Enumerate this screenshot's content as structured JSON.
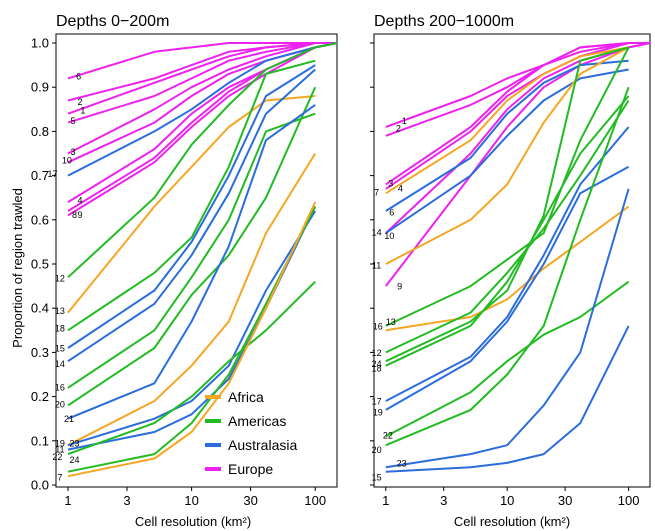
{
  "chart_data": {
    "type": "line",
    "colors": {
      "Africa": "#f5a623",
      "Americas": "#22bb22",
      "Australasia": "#2a6ddb",
      "Europe": "#ee22ee"
    },
    "shared": {
      "ylabel": "Proportion of region trawled",
      "xlabel": "Cell resolution (km²)",
      "x_scale": "log",
      "xlim": [
        0.8,
        150
      ],
      "ylim": [
        0,
        1.0
      ],
      "x_ticks": [
        1,
        3,
        10,
        30,
        100
      ],
      "x_tick_labels": [
        "1",
        "3",
        "10",
        "30",
        "100"
      ],
      "y_ticks": [
        0,
        0.1,
        0.2,
        0.3,
        0.4,
        0.5,
        0.6,
        0.7,
        0.8,
        0.9,
        1.0
      ],
      "y_tick_labels": [
        "0.0",
        "0.1",
        "0.2",
        "0.3",
        "0.4",
        "0.5",
        "0.6",
        "0.7",
        "0.8",
        "0.9",
        "1.0"
      ],
      "x_values": [
        1,
        5,
        10,
        20,
        40,
        100,
        150
      ]
    },
    "legend": {
      "placement": "bottom-right of left panel",
      "entries": [
        "Africa",
        "Americas",
        "Australasia",
        "Europe"
      ]
    },
    "panels": [
      {
        "title": "Depths 0−200m",
        "show_y_tick_labels": true,
        "series": [
          {
            "label": "6",
            "region": "Europe",
            "values": [
              0.92,
              0.98,
              0.99,
              1.0,
              1.0,
              1.0,
              1.0
            ]
          },
          {
            "label": "2",
            "region": "Europe",
            "values": [
              0.87,
              0.92,
              0.95,
              0.98,
              0.99,
              1.0,
              1.0
            ]
          },
          {
            "label": "1",
            "region": "Europe",
            "values": [
              0.84,
              0.91,
              0.94,
              0.97,
              0.99,
              1.0,
              1.0
            ]
          },
          {
            "label": "5",
            "region": "Europe",
            "values": [
              0.82,
              0.88,
              0.92,
              0.96,
              0.98,
              1.0,
              1.0
            ]
          },
          {
            "label": "3",
            "region": "Europe",
            "values": [
              0.75,
              0.85,
              0.9,
              0.94,
              0.97,
              1.0,
              1.0
            ]
          },
          {
            "label": "10",
            "region": "Europe",
            "values": [
              0.73,
              0.82,
              0.88,
              0.93,
              0.96,
              0.99,
              1.0
            ]
          },
          {
            "label": "4",
            "region": "Europe",
            "values": [
              0.64,
              0.76,
              0.84,
              0.9,
              0.94,
              0.99,
              1.0
            ]
          },
          {
            "label": "8",
            "region": "Europe",
            "values": [
              0.61,
              0.73,
              0.81,
              0.88,
              0.93,
              0.99,
              1.0
            ]
          },
          {
            "label": "9",
            "region": "Europe",
            "values": [
              0.62,
              0.74,
              0.82,
              0.89,
              0.94,
              0.99,
              1.0
            ]
          },
          {
            "label": "17",
            "region": "Australasia",
            "values": [
              0.7,
              0.8,
              0.85,
              0.91,
              0.96,
              0.99,
              1.0
            ]
          },
          {
            "label": "12",
            "region": "Americas",
            "values": [
              0.47,
              0.65,
              0.77,
              0.86,
              0.94,
              0.99,
              1.0
            ]
          },
          {
            "label": "13",
            "region": "Africa",
            "values": [
              0.39,
              0.63,
              0.72,
              0.81,
              0.87,
              0.88
            ]
          },
          {
            "label": "18",
            "region": "Americas",
            "values": [
              0.35,
              0.48,
              0.56,
              0.72,
              0.93,
              0.96
            ]
          },
          {
            "label": "15",
            "region": "Australasia",
            "values": [
              0.31,
              0.44,
              0.55,
              0.7,
              0.88,
              0.95
            ]
          },
          {
            "label": "14",
            "region": "Australasia",
            "values": [
              0.28,
              0.41,
              0.52,
              0.66,
              0.84,
              0.94
            ]
          },
          {
            "label": "16",
            "region": "Americas",
            "values": [
              0.22,
              0.35,
              0.47,
              0.6,
              0.8,
              0.84
            ]
          },
          {
            "label": "20",
            "region": "Americas",
            "values": [
              0.18,
              0.31,
              0.43,
              0.52,
              0.65,
              0.9
            ]
          },
          {
            "label": "21",
            "region": "Australasia",
            "values": [
              0.15,
              0.23,
              0.37,
              0.54,
              0.78,
              0.86
            ]
          },
          {
            "label": "19",
            "region": "Africa",
            "values": [
              0.09,
              0.19,
              0.27,
              0.37,
              0.57,
              0.75
            ]
          },
          {
            "label": "23",
            "region": "Australasia",
            "values": [
              0.09,
              0.15,
              0.19,
              0.27,
              0.44,
              0.62
            ]
          },
          {
            "label": "11",
            "region": "Australasia",
            "values": [
              0.08,
              0.12,
              0.16,
              0.24,
              0.4,
              0.63
            ]
          },
          {
            "label": "22",
            "region": "Americas",
            "values": [
              0.07,
              0.14,
              0.2,
              0.28,
              0.35,
              0.46
            ]
          },
          {
            "label": "24",
            "region": "Americas",
            "values": [
              0.03,
              0.07,
              0.14,
              0.25,
              0.41,
              0.63
            ]
          },
          {
            "label": "7",
            "region": "Africa",
            "values": [
              0.02,
              0.06,
              0.12,
              0.23,
              0.4,
              0.64
            ]
          }
        ],
        "label_positions": {
          "6": [
            1.22,
            0.925
          ],
          "2": [
            1.25,
            0.868
          ],
          "1": [
            1.32,
            0.848
          ],
          "5": [
            1.1,
            0.825
          ],
          "3": [
            1.1,
            0.755
          ],
          "10": [
            0.98,
            0.735
          ],
          "17": [
            0.75,
            0.705
          ],
          "4": [
            1.25,
            0.645
          ],
          "8": [
            1.13,
            0.612
          ],
          "9": [
            1.25,
            0.612
          ],
          "12": [
            0.86,
            0.468
          ],
          "13": [
            0.86,
            0.395
          ],
          "18": [
            0.86,
            0.355
          ],
          "15": [
            0.86,
            0.31
          ],
          "14": [
            0.86,
            0.275
          ],
          "16": [
            0.86,
            0.222
          ],
          "20": [
            0.86,
            0.183
          ],
          "21": [
            1.02,
            0.15
          ],
          "19": [
            0.86,
            0.095
          ],
          "23": [
            1.13,
            0.095
          ],
          "11": [
            0.86,
            0.082
          ],
          "22": [
            0.82,
            0.065
          ],
          "24": [
            1.13,
            0.058
          ],
          "7": [
            0.86,
            0.018
          ]
        }
      },
      {
        "title": "Depths 200−1000m",
        "show_y_tick_labels": false,
        "series": [
          {
            "label": "1",
            "region": "Europe",
            "values": [
              0.81,
              0.88,
              0.92,
              0.95,
              0.99,
              1.0,
              1.0
            ]
          },
          {
            "label": "2",
            "region": "Europe",
            "values": [
              0.79,
              0.86,
              0.9,
              0.95,
              0.99,
              1.0,
              1.0
            ]
          },
          {
            "label": "3",
            "region": "Europe",
            "values": [
              0.68,
              0.81,
              0.89,
              0.95,
              0.98,
              1.0,
              1.0
            ]
          },
          {
            "label": "4",
            "region": "Europe",
            "values": [
              0.67,
              0.8,
              0.88,
              0.93,
              0.97,
              1.0,
              1.0
            ]
          },
          {
            "label": "10",
            "region": "Europe",
            "values": [
              0.57,
              0.75,
              0.85,
              0.92,
              0.96,
              0.99,
              1.0
            ]
          },
          {
            "label": "9",
            "region": "Europe",
            "values": [
              0.45,
              0.7,
              0.81,
              0.9,
              0.95,
              0.99,
              1.0
            ]
          },
          {
            "label": "7",
            "region": "Africa",
            "values": [
              0.66,
              0.78,
              0.87,
              0.93,
              0.97,
              0.99
            ]
          },
          {
            "label": "6",
            "region": "Australasia",
            "values": [
              0.62,
              0.74,
              0.84,
              0.91,
              0.95,
              0.96
            ]
          },
          {
            "label": "14",
            "region": "Australasia",
            "values": [
              0.57,
              0.7,
              0.79,
              0.87,
              0.92,
              0.94
            ]
          },
          {
            "label": "11",
            "region": "Africa",
            "values": [
              0.5,
              0.6,
              0.68,
              0.82,
              0.93,
              0.99
            ]
          },
          {
            "label": "16",
            "region": "Africa",
            "values": [
              0.35,
              0.38,
              0.42,
              0.49,
              0.55,
              0.63
            ]
          },
          {
            "label": "13",
            "region": "Americas",
            "values": [
              0.36,
              0.45,
              0.51,
              0.57,
              0.78,
              0.99
            ]
          },
          {
            "label": "12",
            "region": "Americas",
            "values": [
              0.3,
              0.39,
              0.48,
              0.58,
              0.7,
              0.87
            ]
          },
          {
            "label": "24",
            "region": "Americas",
            "values": [
              0.28,
              0.37,
              0.44,
              0.61,
              0.96,
              0.99
            ]
          },
          {
            "label": "18",
            "region": "Americas",
            "values": [
              0.27,
              0.36,
              0.46,
              0.6,
              0.75,
              0.88
            ]
          },
          {
            "label": "17",
            "region": "Australasia",
            "values": [
              0.19,
              0.29,
              0.38,
              0.52,
              0.68,
              0.81
            ]
          },
          {
            "label": "19",
            "region": "Australasia",
            "values": [
              0.17,
              0.28,
              0.37,
              0.5,
              0.66,
              0.72
            ]
          },
          {
            "label": "22",
            "region": "Americas",
            "values": [
              0.11,
              0.21,
              0.28,
              0.34,
              0.38,
              0.46
            ]
          },
          {
            "label": "20",
            "region": "Americas",
            "values": [
              0.09,
              0.17,
              0.25,
              0.36,
              0.6,
              0.9
            ]
          },
          {
            "label": "23",
            "region": "Australasia",
            "values": [
              0.04,
              0.07,
              0.09,
              0.18,
              0.3,
              0.67
            ]
          },
          {
            "label": "15",
            "region": "Australasia",
            "values": [
              0.03,
              0.04,
              0.05,
              0.07,
              0.14,
              0.36
            ]
          }
        ],
        "label_positions": {
          "1": [
            1.42,
            0.825
          ],
          "2": [
            1.27,
            0.808
          ],
          "3": [
            1.1,
            0.683
          ],
          "4": [
            1.32,
            0.672
          ],
          "7": [
            0.84,
            0.663
          ],
          "6": [
            1.12,
            0.618
          ],
          "14": [
            0.84,
            0.572
          ],
          "10": [
            1.07,
            0.565
          ],
          "11": [
            0.84,
            0.498
          ],
          "9": [
            1.3,
            0.45
          ],
          "13": [
            1.1,
            0.37
          ],
          "16": [
            0.86,
            0.36
          ],
          "12": [
            0.84,
            0.3
          ],
          "24": [
            0.84,
            0.275
          ],
          "18": [
            0.84,
            0.265
          ],
          "17": [
            0.84,
            0.19
          ],
          "19": [
            0.86,
            0.165
          ],
          "22": [
            1.04,
            0.113
          ],
          "20": [
            0.84,
            0.08
          ],
          "23": [
            1.35,
            0.05
          ],
          "15": [
            0.84,
            0.018
          ]
        }
      }
    ]
  }
}
